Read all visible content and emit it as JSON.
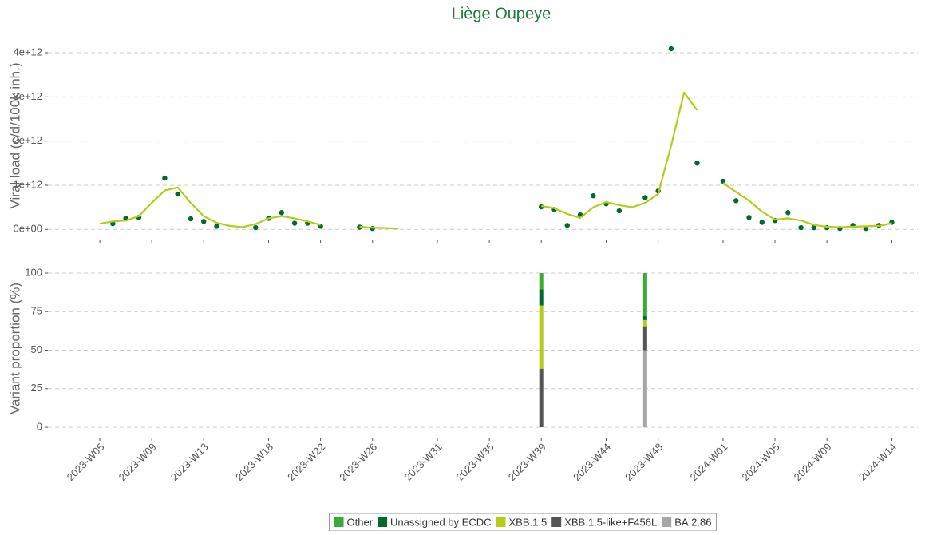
{
  "chart_data": [
    {
      "type": "scatter-smooth",
      "title": "Liège Oupeye",
      "y_label": "Viral load (c/d/100k inh.)",
      "x": [
        "2023-W05",
        "2023-W06",
        "2023-W07",
        "2023-W08",
        "2023-W09",
        "2023-W10",
        "2023-W11",
        "2023-W12",
        "2023-W13",
        "2023-W14",
        "2023-W15",
        "2023-W16",
        "2023-W17",
        "2023-W18",
        "2023-W19",
        "2023-W20",
        "2023-W21",
        "2023-W22",
        "2023-W23",
        "2023-W24",
        "2023-W25",
        "2023-W26",
        "2023-W27",
        "2023-W28",
        "2023-W29",
        "2023-W30",
        "2023-W31",
        "2023-W32",
        "2023-W33",
        "2023-W34",
        "2023-W35",
        "2023-W36",
        "2023-W37",
        "2023-W38",
        "2023-W39",
        "2023-W40",
        "2023-W41",
        "2023-W42",
        "2023-W43",
        "2023-W44",
        "2023-W45",
        "2023-W46",
        "2023-W47",
        "2023-W48",
        "2023-W49",
        "2023-W50",
        "2023-W51",
        "2023-W52",
        "2024-W01",
        "2024-W02",
        "2024-W03",
        "2024-W04",
        "2024-W05",
        "2024-W06",
        "2024-W07",
        "2024-W08",
        "2024-W09",
        "2024-W10",
        "2024-W11",
        "2024-W12",
        "2024-W13",
        "2024-W14"
      ],
      "series": [
        {
          "kind": "points",
          "color": "#006b2f",
          "values": [
            null,
            130000000000.0,
            250000000000.0,
            270000000000.0,
            null,
            1160000000000.0,
            800000000000.0,
            240000000000.0,
            180000000000.0,
            70000000000.0,
            null,
            null,
            40000000000.0,
            250000000000.0,
            380000000000.0,
            140000000000.0,
            140000000000.0,
            70000000000.0,
            null,
            null,
            50000000000.0,
            20000000000.0,
            null,
            null,
            null,
            null,
            null,
            null,
            null,
            null,
            null,
            null,
            null,
            null,
            510000000000.0,
            450000000000.0,
            90000000000.0,
            330000000000.0,
            760000000000.0,
            580000000000.0,
            420000000000.0,
            null,
            720000000000.0,
            870000000000.0,
            4090000000000.0,
            null,
            1500000000000.0,
            null,
            1090000000000.0,
            650000000000.0,
            270000000000.0,
            160000000000.0,
            200000000000.0,
            380000000000.0,
            40000000000.0,
            40000000000.0,
            40000000000.0,
            20000000000.0,
            90000000000.0,
            20000000000.0,
            90000000000.0,
            160000000000.0
          ]
        },
        {
          "kind": "line",
          "color": "#b5cc18",
          "values": [
            130000000000.0,
            180000000000.0,
            200000000000.0,
            300000000000.0,
            600000000000.0,
            880000000000.0,
            950000000000.0,
            600000000000.0,
            300000000000.0,
            150000000000.0,
            80000000000.0,
            50000000000.0,
            120000000000.0,
            250000000000.0,
            300000000000.0,
            250000000000.0,
            180000000000.0,
            100000000000.0,
            null,
            null,
            60000000000.0,
            40000000000.0,
            30000000000.0,
            20000000000.0,
            null,
            null,
            null,
            null,
            null,
            null,
            null,
            null,
            null,
            null,
            530000000000.0,
            480000000000.0,
            350000000000.0,
            260000000000.0,
            500000000000.0,
            620000000000.0,
            550000000000.0,
            500000000000.0,
            600000000000.0,
            800000000000.0,
            1900000000000.0,
            3100000000000.0,
            2700000000000.0,
            null,
            1050000000000.0,
            850000000000.0,
            650000000000.0,
            400000000000.0,
            220000000000.0,
            250000000000.0,
            200000000000.0,
            100000000000.0,
            60000000000.0,
            50000000000.0,
            60000000000.0,
            70000000000.0,
            80000000000.0,
            140000000000.0
          ]
        }
      ],
      "xlim": [
        "2023-W01",
        "2024-W16"
      ],
      "ylim": [
        -230000000000.0,
        4470000000000.0
      ],
      "yticks": [
        {
          "value": 0,
          "label": "0e+00"
        },
        {
          "value": 1000000000000.0,
          "label": "1e+12"
        },
        {
          "value": 2000000000000.0,
          "label": "2e+12"
        },
        {
          "value": 3000000000000.0,
          "label": "3e+12"
        },
        {
          "value": 4000000000000.0,
          "label": "4e+12"
        }
      ],
      "grid": true
    },
    {
      "type": "stacked-bar",
      "y_label": "Variant proportion (%)",
      "x": [
        "2023-W39",
        "2023-W47"
      ],
      "series": [
        {
          "name": "Other",
          "color": "#3aaa35",
          "values": [
            10.5,
            28
          ]
        },
        {
          "name": "Unassigned by ECDC",
          "color": "#006b2f",
          "values": [
            10.5,
            2.5
          ]
        },
        {
          "name": "XBB.1.5",
          "color": "#b5cc18",
          "values": [
            41,
            4
          ]
        },
        {
          "name": "XBB.1.5-like+F456L",
          "color": "#555555",
          "values": [
            38,
            15.5
          ]
        },
        {
          "name": "BA.2.86",
          "color": "#a6a6a6",
          "values": [
            0,
            50
          ]
        }
      ],
      "xlim": [
        "2023-W01",
        "2024-W16"
      ],
      "xticks": [
        "2023-W05",
        "2023-W09",
        "2023-W13",
        "2023-W18",
        "2023-W22",
        "2023-W26",
        "2023-W31",
        "2023-W35",
        "2023-W39",
        "2023-W44",
        "2023-W48",
        "2024-W01",
        "2024-W05",
        "2024-W09",
        "2024-W14"
      ],
      "ylim": [
        -6.7,
        108.8
      ],
      "yticks": [
        0,
        25,
        50,
        75,
        100
      ],
      "grid": true,
      "legend": "bottom"
    }
  ]
}
